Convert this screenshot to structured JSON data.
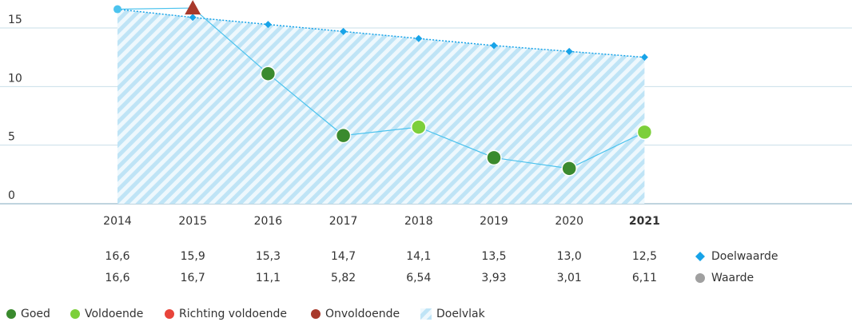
{
  "chart_data": {
    "type": "line",
    "categories": [
      "2014",
      "2015",
      "2016",
      "2017",
      "2018",
      "2019",
      "2020",
      "2021"
    ],
    "bold_category_index": 7,
    "ylim": [
      0,
      17
    ],
    "yticks": [
      0,
      5,
      10,
      15
    ],
    "grid": true,
    "series": [
      {
        "name": "Doelwaarde",
        "color": "#17a3e8",
        "style": "dotted",
        "marker": "diamond",
        "values": [
          16.6,
          15.9,
          15.3,
          14.7,
          14.1,
          13.5,
          13.0,
          12.5
        ],
        "value_labels": [
          "16,6",
          "15,9",
          "15,3",
          "14,7",
          "14,1",
          "13,5",
          "13,0",
          "12,5"
        ]
      },
      {
        "name": "Waarde",
        "color": "#4cc3ee",
        "legend_color": "#a0a0a0",
        "style": "solid",
        "marker": "circle",
        "values": [
          16.6,
          16.7,
          11.1,
          5.82,
          6.54,
          3.93,
          3.01,
          6.11
        ],
        "value_labels": [
          "16,6",
          "16,7",
          "11,1",
          "5,82",
          "6,54",
          "3,93",
          "3,01",
          "6,11"
        ],
        "markers": [
          null,
          {
            "shape": "triangle",
            "color": "#a8392b"
          },
          {
            "shape": "circle",
            "color": "#3a8a2e"
          },
          {
            "shape": "circle",
            "color": "#3a8a2e"
          },
          {
            "shape": "circle",
            "color": "#7ccf3a"
          },
          {
            "shape": "circle",
            "color": "#3a8a2e"
          },
          {
            "shape": "circle",
            "color": "#3a8a2e"
          },
          {
            "shape": "circle",
            "color": "#7ccf3a"
          }
        ]
      }
    ],
    "status_legend": [
      {
        "name": "Goed",
        "color": "#3a8a2e"
      },
      {
        "name": "Voldoende",
        "color": "#7ccf3a"
      },
      {
        "name": "Richting voldoende",
        "color": "#e8443a"
      },
      {
        "name": "Onvoldoende",
        "color": "#a8392b"
      }
    ],
    "area_legend": {
      "name": "Doelvlak",
      "color": "#bfe4f6"
    }
  }
}
